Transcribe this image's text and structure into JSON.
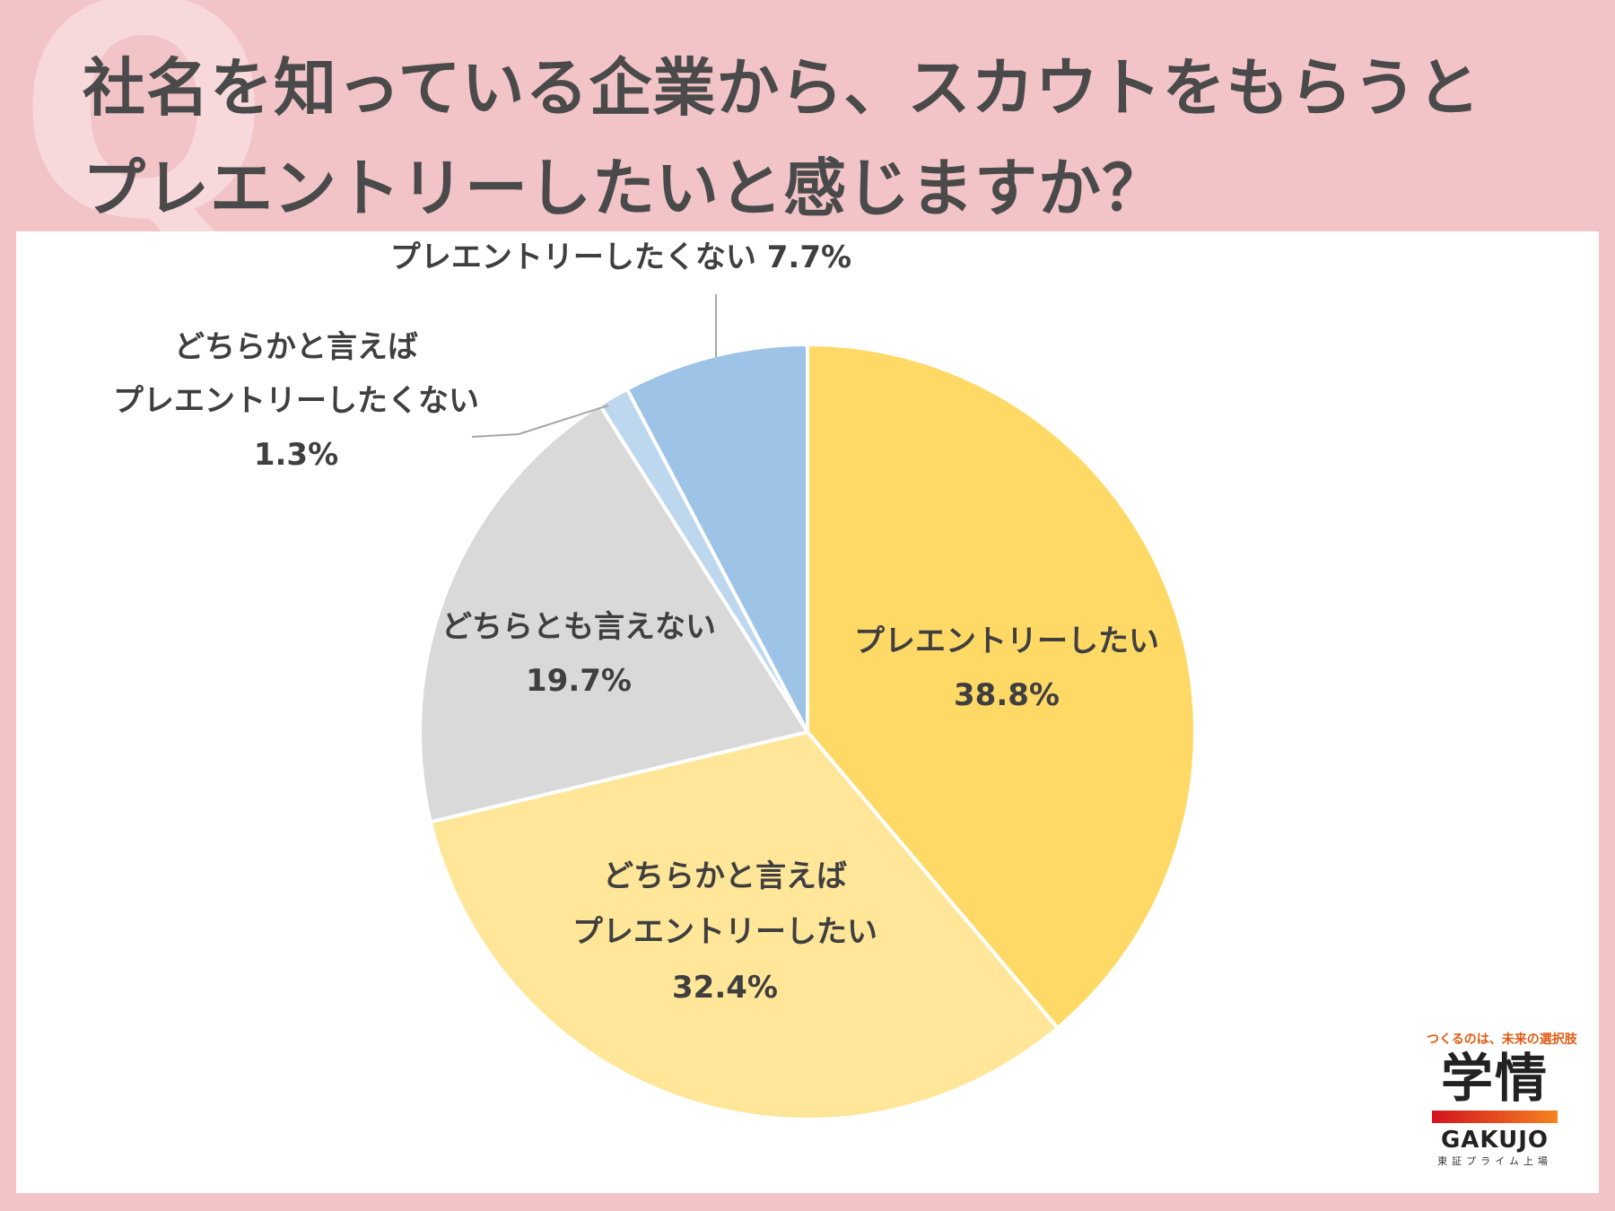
{
  "header": {
    "title_line1": "社名を知っている企業から、スカウトをもらうと",
    "title_line2": "プレエントリーしたいと感じますか？",
    "q_mark": "Q"
  },
  "chart_data": {
    "type": "pie",
    "start_angle_deg": 0,
    "direction": "clockwise",
    "slices": [
      {
        "label_lines": [
          "プレエントリーしたい"
        ],
        "value": 38.8,
        "value_label": "38.8%",
        "color": "#ffd966"
      },
      {
        "label_lines": [
          "どちらかと言えば",
          "プレエントリーしたい"
        ],
        "value": 32.4,
        "value_label": "32.4%",
        "color": "#ffe699"
      },
      {
        "label_lines": [
          "どちらとも言えない"
        ],
        "value": 19.7,
        "value_label": "19.7%",
        "color": "#d9d9d9"
      },
      {
        "label_lines": [
          "どちらかと言えば",
          "プレエントリーしたくない"
        ],
        "value": 1.3,
        "value_label": "1.3%",
        "color": "#bdd7ee"
      },
      {
        "label_lines": [
          "プレエントリーしたくない"
        ],
        "value": 7.7,
        "value_label": "7.7%",
        "color": "#9dc3e6"
      }
    ]
  },
  "logo": {
    "tagline": "つくるのは、未来の選択肢",
    "kanji": "学情",
    "english": "GAKUJO",
    "subtitle": "東証プライム上場"
  }
}
